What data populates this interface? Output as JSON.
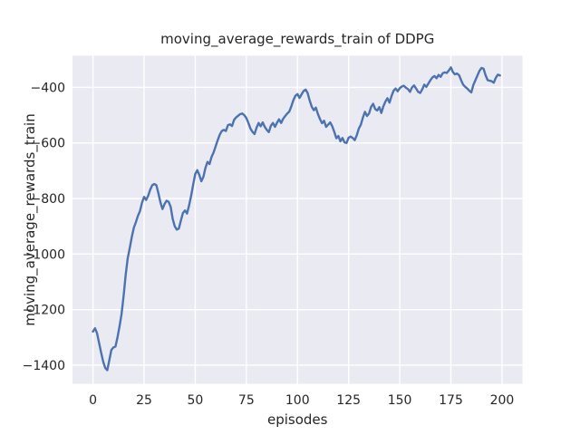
{
  "chart_data": {
    "type": "line",
    "title": "moving_average_rewards_train of DDPG",
    "xlabel": "episodes",
    "ylabel": "moving_average_rewards_train",
    "xlim": [
      -10,
      210
    ],
    "ylim": [
      -1467,
      -286
    ],
    "xticks": [
      0,
      25,
      50,
      75,
      100,
      125,
      150,
      175,
      200
    ],
    "yticks": [
      -400,
      -600,
      -800,
      -1000,
      -1200,
      -1400
    ],
    "grid": true,
    "legend": "none",
    "style": {
      "plot_bg": "#EAEAF2",
      "grid_color": "#FFFFFF",
      "line_color": "#4C72B0",
      "text_color": "#262626",
      "figure_bg": "#FFFFFF"
    },
    "series": [
      {
        "name": "moving_average_rewards_train",
        "x_start": 0,
        "x_step": 1,
        "y_values": [
          -1279,
          -1267,
          -1285,
          -1320,
          -1355,
          -1387,
          -1410,
          -1418,
          -1382,
          -1345,
          -1336,
          -1333,
          -1300,
          -1260,
          -1215,
          -1150,
          -1075,
          -1015,
          -978,
          -938,
          -905,
          -885,
          -862,
          -845,
          -815,
          -794,
          -805,
          -790,
          -768,
          -752,
          -748,
          -752,
          -781,
          -814,
          -838,
          -820,
          -808,
          -812,
          -830,
          -874,
          -900,
          -912,
          -908,
          -879,
          -852,
          -843,
          -854,
          -825,
          -790,
          -750,
          -712,
          -698,
          -715,
          -738,
          -722,
          -690,
          -668,
          -676,
          -650,
          -634,
          -612,
          -590,
          -570,
          -557,
          -553,
          -557,
          -536,
          -533,
          -539,
          -517,
          -508,
          -502,
          -496,
          -494,
          -500,
          -510,
          -528,
          -548,
          -560,
          -568,
          -545,
          -528,
          -540,
          -526,
          -542,
          -553,
          -561,
          -538,
          -528,
          -542,
          -527,
          -515,
          -528,
          -513,
          -503,
          -494,
          -487,
          -468,
          -446,
          -430,
          -424,
          -438,
          -425,
          -413,
          -408,
          -421,
          -448,
          -470,
          -482,
          -473,
          -496,
          -514,
          -529,
          -520,
          -542,
          -534,
          -526,
          -540,
          -560,
          -583,
          -575,
          -594,
          -582,
          -598,
          -600,
          -581,
          -577,
          -582,
          -590,
          -572,
          -548,
          -534,
          -508,
          -488,
          -503,
          -494,
          -470,
          -459,
          -478,
          -483,
          -471,
          -492,
          -468,
          -451,
          -439,
          -455,
          -431,
          -412,
          -404,
          -414,
          -403,
          -397,
          -394,
          -401,
          -406,
          -416,
          -400,
          -393,
          -404,
          -416,
          -420,
          -407,
          -390,
          -398,
          -386,
          -374,
          -364,
          -359,
          -367,
          -355,
          -362,
          -349,
          -346,
          -348,
          -339,
          -328,
          -345,
          -353,
          -350,
          -356,
          -374,
          -390,
          -398,
          -404,
          -412,
          -418,
          -391,
          -374,
          -357,
          -340,
          -330,
          -333,
          -357,
          -374,
          -376,
          -378,
          -383,
          -365,
          -354,
          -357
        ]
      }
    ]
  }
}
